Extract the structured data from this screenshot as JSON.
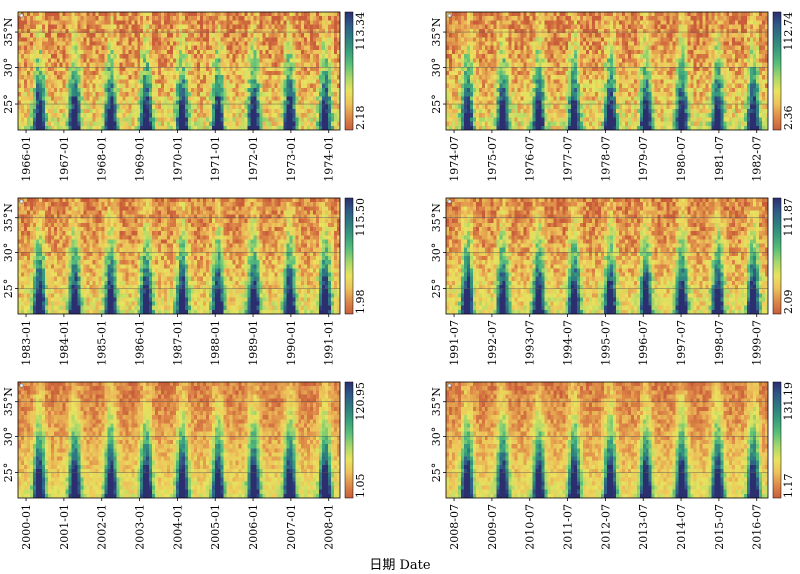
{
  "figure": {
    "xlabel": "日期 Date"
  },
  "colors": {
    "scale": [
      "#c95d3a",
      "#de8a48",
      "#edc35a",
      "#e8e35e",
      "#a8d86a",
      "#5cc07a",
      "#39a07c",
      "#2e7d7f",
      "#2f5a88",
      "#2b2f6f"
    ],
    "axis": "#000000",
    "grid": "#555555"
  },
  "chart_data": [
    {
      "type": "heatmap",
      "panel": "top-left",
      "y_ticks": [
        "25°",
        "30°",
        "35°N"
      ],
      "x_ticks": [
        "1966-01",
        "1967-01",
        "1968-01",
        "1969-01",
        "1970-01",
        "1971-01",
        "1972-01",
        "1973-01",
        "1974-01"
      ],
      "colorbar": {
        "min": "2.18",
        "max": "113.34"
      },
      "seed": 11,
      "noise": 0.33,
      "amp": 0.92
    },
    {
      "type": "heatmap",
      "panel": "top-right",
      "y_ticks": [
        "25°",
        "30°",
        "35°N"
      ],
      "x_ticks": [
        "1974-07",
        "1975-07",
        "1976-07",
        "1977-07",
        "1978-07",
        "1979-07",
        "1980-07",
        "1981-07",
        "1982-07"
      ],
      "colorbar": {
        "min": "2.36",
        "max": "112.74"
      },
      "seed": 23,
      "noise": 0.32,
      "amp": 0.92
    },
    {
      "type": "heatmap",
      "panel": "middle-left",
      "y_ticks": [
        "25°",
        "30°",
        "35°N"
      ],
      "x_ticks": [
        "1983-01",
        "1984-01",
        "1985-01",
        "1986-01",
        "1987-01",
        "1988-01",
        "1989-01",
        "1990-01",
        "1991-01"
      ],
      "colorbar": {
        "min": "1.98",
        "max": "115.50"
      },
      "seed": 37,
      "noise": 0.27,
      "amp": 0.95
    },
    {
      "type": "heatmap",
      "panel": "middle-right",
      "y_ticks": [
        "25°",
        "30°",
        "35°N"
      ],
      "x_ticks": [
        "1991-07",
        "1992-07",
        "1993-07",
        "1994-07",
        "1995-07",
        "1996-07",
        "1997-07",
        "1998-07",
        "1999-07"
      ],
      "colorbar": {
        "min": "2.09",
        "max": "111.87"
      },
      "seed": 41,
      "noise": 0.27,
      "amp": 0.95
    },
    {
      "type": "heatmap",
      "panel": "bottom-left",
      "y_ticks": [
        "25°",
        "30°",
        "35°N"
      ],
      "x_ticks": [
        "2000-01",
        "2001-01",
        "2002-01",
        "2003-01",
        "2004-01",
        "2005-01",
        "2006-01",
        "2007-01",
        "2008-01"
      ],
      "colorbar": {
        "min": "1.05",
        "max": "120.95"
      },
      "seed": 53,
      "noise": 0.18,
      "amp": 1.0
    },
    {
      "type": "heatmap",
      "panel": "bottom-right",
      "y_ticks": [
        "25°",
        "30°",
        "35°N"
      ],
      "x_ticks": [
        "2008-07",
        "2009-07",
        "2010-07",
        "2011-07",
        "2012-07",
        "2013-07",
        "2014-07",
        "2015-07",
        "2016-07"
      ],
      "colorbar": {
        "min": "1.17",
        "max": "131.19"
      },
      "seed": 67,
      "noise": 0.18,
      "amp": 1.0
    }
  ]
}
